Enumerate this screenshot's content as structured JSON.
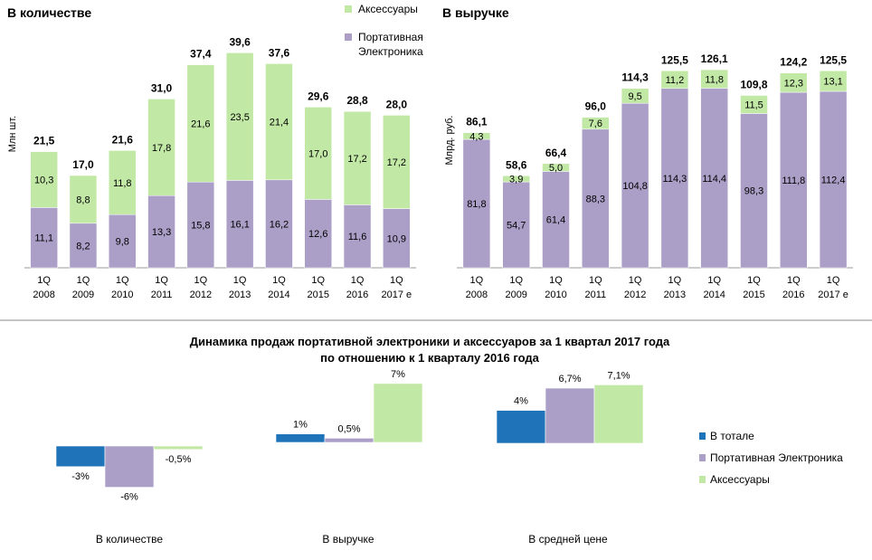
{
  "colors": {
    "portable": "#ab9fc7",
    "portable_border": "#8a7fb0",
    "accessories": "#c2e8a6",
    "accessories_border": "#7fc04f",
    "total": "#1f73b8",
    "axis": "#999999",
    "divider": "#8a8a8a"
  },
  "legend_top": {
    "accessories": "Аксессуары",
    "portable_line1": "Портативная",
    "portable_line2": "Электроника"
  },
  "bottom": {
    "title_line1": "Динамика продаж портативной электроники и аксессуаров за 1 квартал 2017 года",
    "title_line2": "по отношению к 1 кварталу 2016 года",
    "legend": [
      "В тотале",
      "Портативная Электроника",
      "Аксессуары"
    ]
  },
  "chart_data": [
    {
      "type": "bar",
      "stacked": true,
      "title": "В количестве",
      "ylabel": "Млн шт.",
      "categories": [
        [
          "1Q",
          "2008"
        ],
        [
          "1Q",
          "2009"
        ],
        [
          "1Q",
          "2010"
        ],
        [
          "1Q",
          "2011"
        ],
        [
          "1Q",
          "2012"
        ],
        [
          "1Q",
          "2013"
        ],
        [
          "1Q",
          "2014"
        ],
        [
          "1Q",
          "2015"
        ],
        [
          "1Q",
          "2016"
        ],
        [
          "1Q",
          "2017 е"
        ]
      ],
      "series": [
        {
          "name": "Портативная Электроника",
          "values": [
            11.1,
            8.2,
            9.8,
            13.3,
            15.8,
            16.1,
            16.2,
            12.6,
            11.6,
            10.9
          ],
          "labels": [
            "11,1",
            "8,2",
            "9,8",
            "13,3",
            "15,8",
            "16,1",
            "16,2",
            "12,6",
            "11,6",
            "10,9"
          ]
        },
        {
          "name": "Аксессуары",
          "values": [
            10.3,
            8.8,
            11.8,
            17.8,
            21.6,
            23.5,
            21.4,
            17.0,
            17.2,
            17.2
          ],
          "labels": [
            "10,3",
            "8,8",
            "11,8",
            "17,8",
            "21,6",
            "23,5",
            "21,4",
            "17,0",
            "17,2",
            "17,2"
          ]
        }
      ],
      "totals": [
        21.5,
        17.0,
        21.6,
        31.0,
        37.4,
        39.6,
        37.6,
        29.6,
        28.8,
        28.0
      ],
      "total_labels": [
        "21,5",
        "17,0",
        "21,6",
        "31,0",
        "37,4",
        "39,6",
        "37,6",
        "29,6",
        "28,8",
        "28,0"
      ],
      "ylim": [
        0,
        45
      ],
      "legend": "top-right"
    },
    {
      "type": "bar",
      "stacked": true,
      "title": "В выручке",
      "ylabel": "Млрд. руб.",
      "categories": [
        [
          "1Q",
          "2008"
        ],
        [
          "1Q",
          "2009"
        ],
        [
          "1Q",
          "2010"
        ],
        [
          "1Q",
          "2011"
        ],
        [
          "1Q",
          "2012"
        ],
        [
          "1Q",
          "2013"
        ],
        [
          "1Q",
          "2014"
        ],
        [
          "1Q",
          "2015"
        ],
        [
          "1Q",
          "2016"
        ],
        [
          "1Q",
          "2017 е"
        ]
      ],
      "series": [
        {
          "name": "Портативная Электроника",
          "values": [
            81.8,
            54.7,
            61.4,
            88.3,
            104.8,
            114.3,
            114.4,
            98.3,
            111.8,
            112.4
          ],
          "labels": [
            "81,8",
            "54,7",
            "61,4",
            "88,3",
            "104,8",
            "114,3",
            "114,4",
            "98,3",
            "111,8",
            "112,4"
          ]
        },
        {
          "name": "Аксессуары",
          "values": [
            4.3,
            3.9,
            5.0,
            7.6,
            9.5,
            11.2,
            11.8,
            11.5,
            12.3,
            13.1
          ],
          "labels": [
            "4,3",
            "3,9",
            "5,0",
            "7,6",
            "9,5",
            "11,2",
            "11,8",
            "11,5",
            "12,3",
            "13,1"
          ]
        }
      ],
      "totals": [
        86.1,
        58.6,
        66.4,
        96.0,
        114.3,
        125.5,
        126.1,
        109.8,
        124.2,
        125.5
      ],
      "total_labels": [
        "86,1",
        "58,6",
        "66,4",
        "96,0",
        "114,3",
        "125,5",
        "126,1",
        "109,8",
        "124,2",
        "125,5"
      ],
      "ylim": [
        0,
        140
      ]
    },
    {
      "type": "bar",
      "title": "",
      "groups": [
        "В количестве",
        "В выручке",
        "В средней цене"
      ],
      "series": [
        {
          "name": "В тотале",
          "values": [
            -3,
            1,
            4
          ],
          "labels": [
            "-3%",
            "1%",
            "4%"
          ]
        },
        {
          "name": "Портативная Электроника",
          "values": [
            -6,
            0.5,
            6.7
          ],
          "labels": [
            "-6%",
            "0,5%",
            "6,7%"
          ]
        },
        {
          "name": "Аксессуары",
          "values": [
            -0.5,
            7,
            7.1
          ],
          "labels": [
            "-0,5%",
            "7%",
            "7,1%"
          ]
        }
      ],
      "legend": "right"
    }
  ]
}
